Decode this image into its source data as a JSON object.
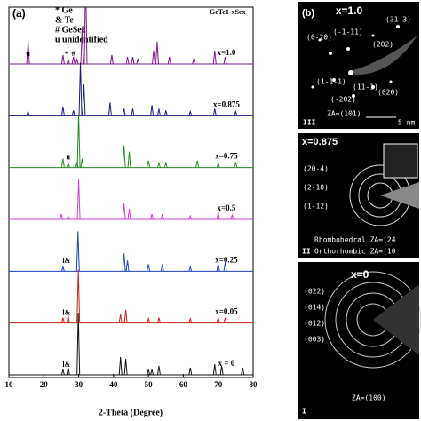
{
  "chart_data": {
    "type": "line",
    "panel_label": "(a)",
    "formula": "GeTe1-xSex",
    "legend_text": [
      "* Ge",
      "& Te",
      "# GeSe2",
      "u unidentified"
    ],
    "xlabel": "2-Theta (Degree)",
    "xlim": [
      10,
      80
    ],
    "xticks": [
      10,
      20,
      30,
      40,
      50,
      60,
      70,
      80
    ],
    "series": [
      {
        "name": "x=1.0",
        "color": "#7a1a8a",
        "x": [
          15.5,
          25.5,
          27,
          28.5,
          29.5,
          31,
          32,
          39.5,
          44,
          45.5,
          47,
          51.5,
          52.5,
          56,
          63,
          69,
          72
        ],
        "values": [
          25,
          10,
          5,
          8,
          5,
          40,
          100,
          10,
          8,
          8,
          6,
          15,
          25,
          8,
          6,
          15,
          8
        ]
      },
      {
        "name": "x=0.875",
        "color": "#1a1a80",
        "x": [
          15.5,
          25.5,
          28.5,
          30.5,
          31.5,
          39,
          43,
          45.5,
          51,
          53,
          55,
          62,
          69,
          75
        ],
        "values": [
          5,
          10,
          6,
          60,
          35,
          15,
          8,
          8,
          12,
          8,
          6,
          5,
          8,
          5
        ]
      },
      {
        "name": "x=0.75",
        "color": "#2a8a2a",
        "x": [
          25.5,
          27,
          29.5,
          30,
          31,
          43,
          44.5,
          50,
          53,
          55,
          64,
          70,
          75
        ],
        "values": [
          10,
          5,
          6,
          60,
          10,
          25,
          18,
          8,
          5,
          5,
          8,
          5,
          6
        ]
      },
      {
        "name": "x=0.5",
        "color": "#d040d0",
        "x": [
          25,
          27,
          30,
          43,
          44.5,
          51,
          54,
          62,
          70,
          74
        ],
        "values": [
          6,
          4,
          45,
          18,
          12,
          6,
          6,
          4,
          8,
          5
        ]
      },
      {
        "name": "x=0.25",
        "color": "#2040c0",
        "x": [
          25.5,
          29.8,
          43,
          44,
          50,
          54,
          62,
          70,
          72
        ],
        "values": [
          5,
          45,
          20,
          12,
          8,
          8,
          5,
          8,
          10
        ]
      },
      {
        "name": "x=0.05",
        "color": "#d02020",
        "x": [
          25.5,
          27,
          29.9,
          42,
          43.5,
          50,
          53,
          62,
          70,
          72
        ],
        "values": [
          6,
          8,
          60,
          10,
          15,
          5,
          6,
          5,
          6,
          6
        ]
      },
      {
        "name": "x = 0",
        "color": "#111111",
        "x": [
          25.5,
          27,
          29.9,
          42,
          43.5,
          50,
          51,
          53,
          62,
          69,
          71,
          77
        ],
        "values": [
          6,
          8,
          70,
          20,
          18,
          6,
          6,
          10,
          8,
          12,
          10,
          8
        ]
      }
    ],
    "annotations": [
      {
        "text": "u",
        "x": 15.5,
        "series": 0
      },
      {
        "text": "*",
        "x": 26.5,
        "series": 0
      },
      {
        "text": "#",
        "x": 28.5,
        "series": 0
      },
      {
        "text": "u",
        "x": 27,
        "series": 2
      },
      {
        "text": "l&",
        "x": 26.5,
        "series": 4
      },
      {
        "text": "l&",
        "x": 26.5,
        "series": 5
      },
      {
        "text": "l&",
        "x": 26.5,
        "series": 6
      }
    ]
  },
  "panels": {
    "b": {
      "label": "(b)",
      "title": "x=1.0",
      "spots": [
        "(-1-11)",
        "(0-20)",
        "(31-3)",
        "(202)",
        "(1-1-1)",
        "(11-1)",
        "(020)",
        "(-202)"
      ],
      "za": "ZA=(101)",
      "scale": "5 nm",
      "roman": "III"
    },
    "c": {
      "title": "x=0.875",
      "rings": [
        "(20-4)",
        "(2-10)",
        "(1-12)"
      ],
      "rh": "Rhombohedral  ZA=[24",
      "or": "Orthorhombic  ZA=[10",
      "roman": "II"
    },
    "d": {
      "title": "x=0",
      "rings": [
        "(022)",
        "(014)",
        "(012)",
        "(003)"
      ],
      "za": "ZA=(100)",
      "roman": "I"
    }
  }
}
